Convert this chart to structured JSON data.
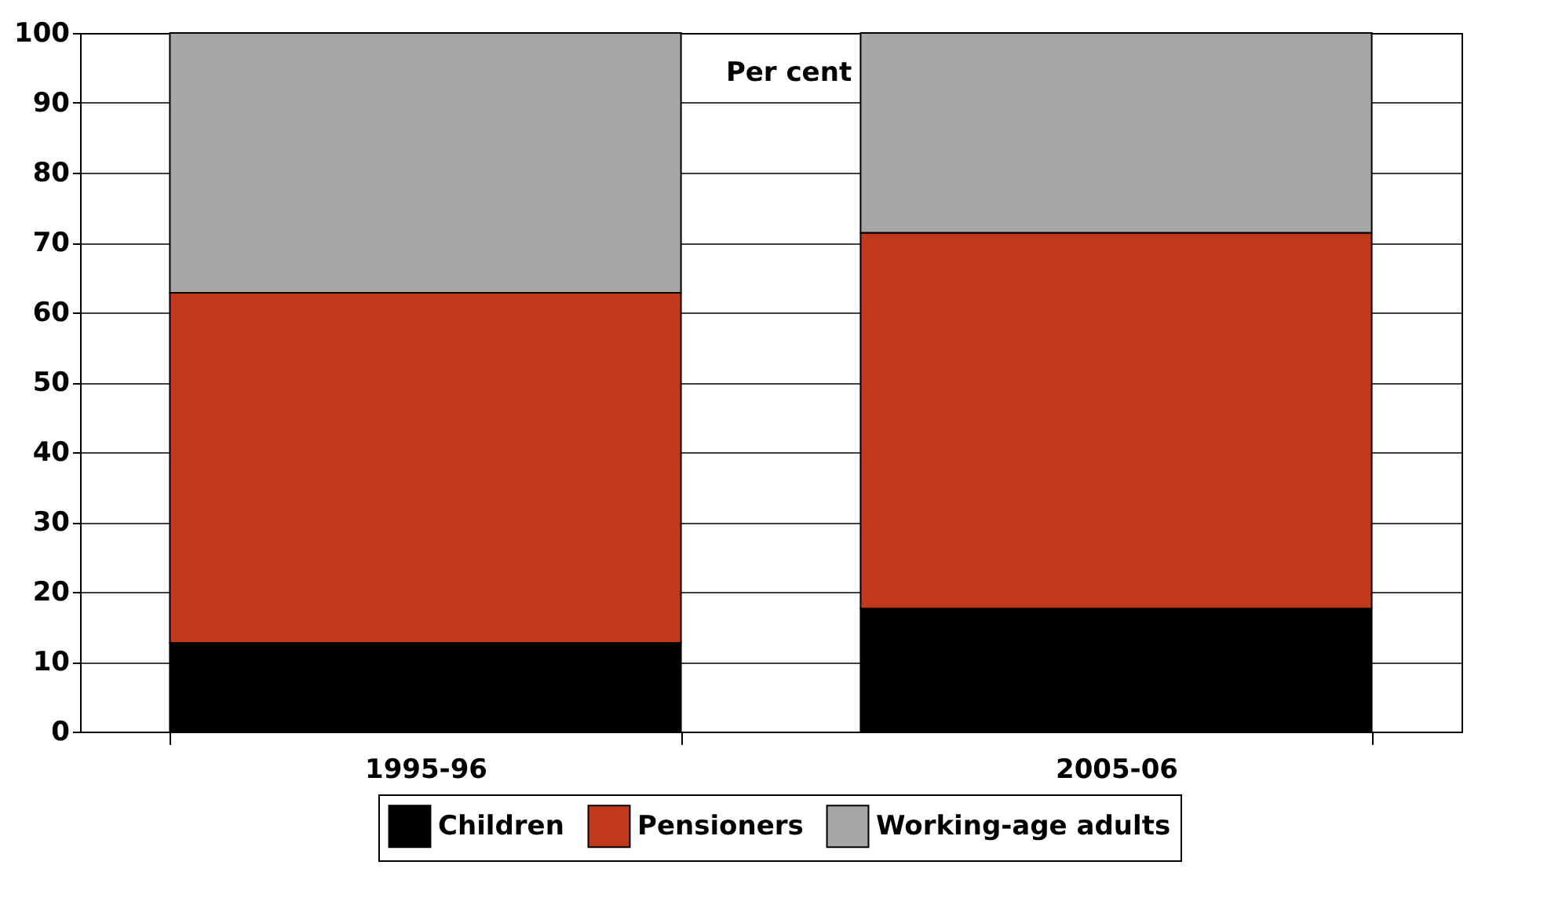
{
  "chart_data": {
    "type": "bar",
    "stacked": true,
    "ylabel": "Per cent",
    "categories": [
      "1995-96",
      "2005-06"
    ],
    "series": [
      {
        "name": "Children",
        "color": "#000000",
        "values": [
          12.7,
          17.6
        ]
      },
      {
        "name": "Pensioners",
        "color": "#c1391a",
        "values": [
          50.1,
          53.8
        ]
      },
      {
        "name": "Working-age adults",
        "color": "#a6a6a6",
        "values": [
          37.2,
          28.6
        ]
      }
    ],
    "ylim": [
      0,
      100
    ],
    "yticks": [
      0,
      10,
      20,
      30,
      40,
      50,
      60,
      70,
      80,
      90,
      100
    ],
    "grid": "y",
    "legend": "bottom"
  }
}
